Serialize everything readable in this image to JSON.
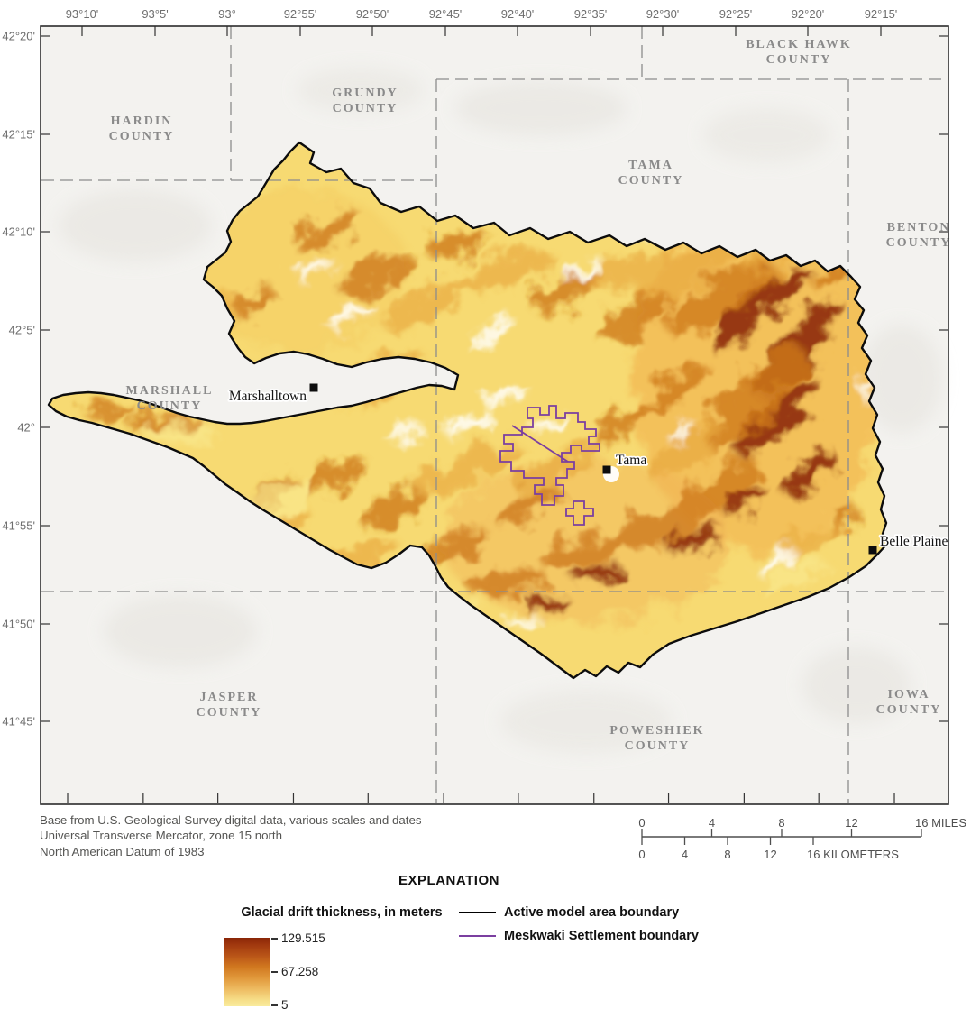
{
  "axis": {
    "top_lon_labels": [
      "93°10'",
      "93°5'",
      "93°",
      "92°55'",
      "92°50'",
      "92°45'",
      "92°40'",
      "92°35'",
      "92°30'",
      "92°25'",
      "92°20'",
      "92°15'"
    ],
    "left_lat_labels": [
      "42°20'",
      "42°15'",
      "42°10'",
      "42°5'",
      "42°",
      "41°55'",
      "41°50'",
      "41°45'"
    ]
  },
  "map": {
    "counties": [
      {
        "line1": "HARDIN",
        "line2": "COUNTY"
      },
      {
        "line1": "GRUNDY",
        "line2": "COUNTY"
      },
      {
        "line1": "BLACK HAWK",
        "line2": "COUNTY"
      },
      {
        "line1": "TAMA",
        "line2": "COUNTY"
      },
      {
        "line1": "BENTON",
        "line2": "COUNTY"
      },
      {
        "line1": "MARSHALL",
        "line2": "COUNTY"
      },
      {
        "line1": "JASPER",
        "line2": "COUNTY"
      },
      {
        "line1": "POWESHIEK",
        "line2": "COUNTY"
      },
      {
        "line1": "IOWA",
        "line2": "COUNTY"
      }
    ],
    "cities": [
      {
        "name": "Marshalltown"
      },
      {
        "name": "Tama"
      },
      {
        "name": "Belle Plaine"
      }
    ]
  },
  "base_note": {
    "lines": [
      "Base from U.S. Geological Survey digital data, various scales and dates",
      "Universal Transverse Mercator, zone 15 north",
      "North American Datum of 1983"
    ]
  },
  "scalebar": {
    "miles": {
      "ticks": [
        "0",
        "4",
        "8",
        "12",
        "16"
      ],
      "unit": "MILES"
    },
    "kilometers": {
      "ticks": [
        "0",
        "4",
        "8",
        "12",
        "16"
      ],
      "unit": "KILOMETERS"
    }
  },
  "explanation": {
    "title": "EXPLANATION",
    "ramp": {
      "title": "Glacial drift thickness, in meters",
      "max_label": "129.515",
      "mid_label": "67.258",
      "min_label": "5"
    },
    "legend": [
      {
        "label": "Active model area boundary",
        "color": "#000000"
      },
      {
        "label": "Meskwaki Settlement boundary",
        "color": "#7b3fa0"
      }
    ]
  },
  "colors": {
    "drift_low": "#f9eb9d",
    "drift_mid": "#e0973a",
    "drift_high": "#8a2507",
    "model_boundary": "#000000",
    "meskwaki_boundary": "#7b3fa0",
    "county_line": "#8c8c8c",
    "county_label": "#8a8a8a",
    "map_background": "#f3f2ef"
  }
}
